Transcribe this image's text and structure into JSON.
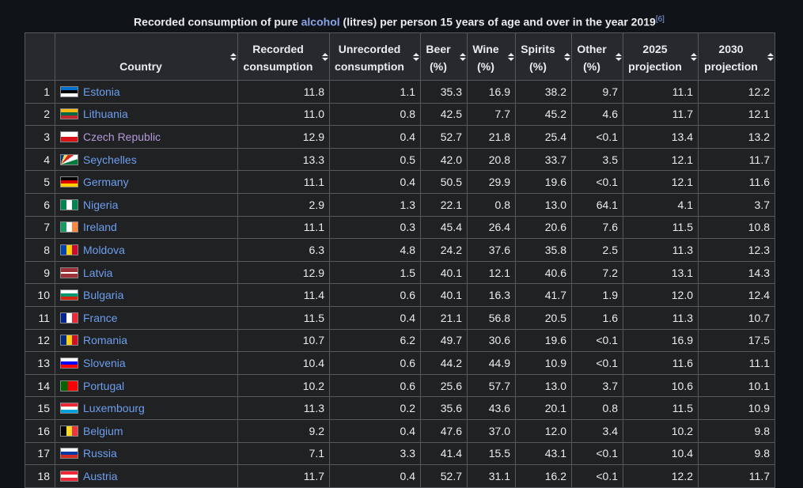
{
  "caption": {
    "before": "Recorded consumption of pure ",
    "link": "alcohol",
    "after": " (litres) per person 15 years of age and over in the year 2019",
    "ref": "[6]"
  },
  "table": {
    "header": [
      "",
      "Country",
      "Recorded consumption",
      "Unrecorded consumption",
      "Beer (%)",
      "Wine (%)",
      "Spirits (%)",
      "Other (%)",
      "2025 projection",
      "2030 projection"
    ],
    "rows": [
      [
        "1",
        "Estonia",
        "11.8",
        "1.1",
        "35.3",
        "16.9",
        "38.2",
        "9.7",
        "11.1",
        "12.2"
      ],
      [
        "2",
        "Lithuania",
        "11.0",
        "0.8",
        "42.5",
        "7.7",
        "45.2",
        "4.6",
        "11.7",
        "12.1"
      ],
      [
        "3",
        "Czech Republic",
        "12.9",
        "0.4",
        "52.7",
        "21.8",
        "25.4",
        "<0.1",
        "13.4",
        "13.2"
      ],
      [
        "4",
        "Seychelles",
        "13.3",
        "0.5",
        "42.0",
        "20.8",
        "33.7",
        "3.5",
        "12.1",
        "11.7"
      ],
      [
        "5",
        "Germany",
        "11.1",
        "0.4",
        "50.5",
        "29.9",
        "19.6",
        "<0.1",
        "12.1",
        "11.6"
      ],
      [
        "6",
        "Nigeria",
        "2.9",
        "1.3",
        "22.1",
        "0.8",
        "13.0",
        "64.1",
        "4.1",
        "3.7"
      ],
      [
        "7",
        "Ireland",
        "11.1",
        "0.3",
        "45.4",
        "26.4",
        "20.6",
        "7.6",
        "11.5",
        "10.8"
      ],
      [
        "8",
        "Moldova",
        "6.3",
        "4.8",
        "24.2",
        "37.6",
        "35.8",
        "2.5",
        "11.3",
        "12.3"
      ],
      [
        "9",
        "Latvia",
        "12.9",
        "1.5",
        "40.1",
        "12.1",
        "40.6",
        "7.2",
        "13.1",
        "14.3"
      ],
      [
        "10",
        "Bulgaria",
        "11.4",
        "0.6",
        "40.1",
        "16.3",
        "41.7",
        "1.9",
        "12.0",
        "12.4"
      ],
      [
        "11",
        "France",
        "11.5",
        "0.4",
        "21.1",
        "56.8",
        "20.5",
        "1.6",
        "11.3",
        "10.7"
      ],
      [
        "12",
        "Romania",
        "10.7",
        "6.2",
        "49.7",
        "30.6",
        "19.6",
        "<0.1",
        "16.9",
        "17.5"
      ],
      [
        "13",
        "Slovenia",
        "10.4",
        "0.6",
        "44.2",
        "44.9",
        "10.9",
        "<0.1",
        "11.6",
        "11.1"
      ],
      [
        "14",
        "Portugal",
        "10.2",
        "0.6",
        "25.6",
        "57.7",
        "13.0",
        "3.7",
        "10.6",
        "10.1"
      ],
      [
        "15",
        "Luxembourg",
        "11.3",
        "0.2",
        "35.6",
        "43.6",
        "20.1",
        "0.8",
        "11.5",
        "10.9"
      ],
      [
        "16",
        "Belgium",
        "9.2",
        "0.4",
        "47.6",
        "37.0",
        "12.0",
        "3.4",
        "10.2",
        "9.8"
      ],
      [
        "17",
        "Russia",
        "7.1",
        "3.3",
        "41.4",
        "15.5",
        "43.1",
        "<0.1",
        "10.4",
        "9.8"
      ],
      [
        "18",
        "Austria",
        "11.7",
        "0.4",
        "52.7",
        "31.1",
        "16.2",
        "<0.1",
        "12.2",
        "11.7"
      ]
    ]
  }
}
